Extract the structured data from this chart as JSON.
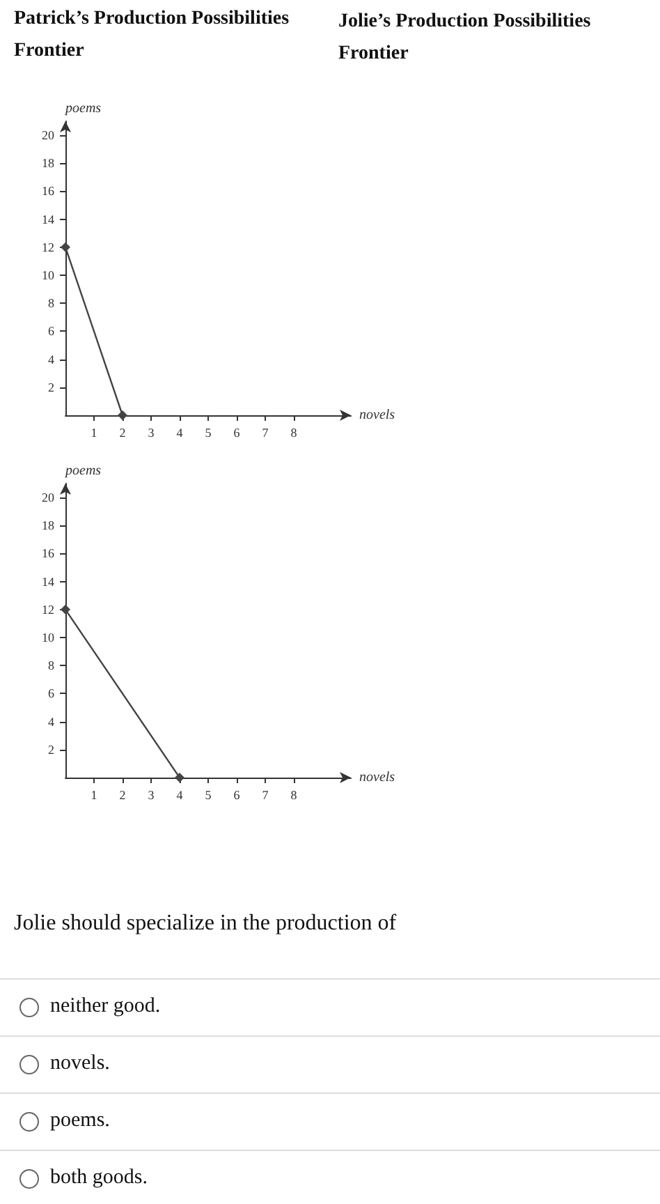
{
  "chart_data": [
    {
      "type": "line",
      "title": "Patrick’s Production Possibilities Frontier",
      "xlabel": "novels",
      "ylabel": "poems",
      "xlim": [
        0,
        10
      ],
      "ylim": [
        0,
        21
      ],
      "xticks": [
        1,
        2,
        3,
        4,
        5,
        6,
        7,
        8
      ],
      "yticks": [
        2,
        4,
        6,
        8,
        10,
        12,
        14,
        16,
        18,
        20
      ],
      "marker": "diamond",
      "color": "#444444",
      "x": [
        0,
        2
      ],
      "values": [
        12,
        0
      ]
    },
    {
      "type": "other",
      "title": "Jolie’s Production Possibilities Frontier"
    },
    {
      "type": "line",
      "xlabel": "novels",
      "ylabel": "poems",
      "xlim": [
        0,
        10
      ],
      "ylim": [
        0,
        21
      ],
      "xticks": [
        1,
        2,
        3,
        4,
        5,
        6,
        7,
        8
      ],
      "yticks": [
        2,
        4,
        6,
        8,
        10,
        12,
        14,
        16,
        18,
        20
      ],
      "marker": "diamond",
      "color": "#444444",
      "x": [
        0,
        4
      ],
      "values": [
        12,
        0
      ]
    },
    {
      "type": "other",
      "title": "Jolie should specialize in the production of",
      "annotations": [
        "neither good.",
        "novels.",
        "poems.",
        "both goods."
      ]
    }
  ]
}
